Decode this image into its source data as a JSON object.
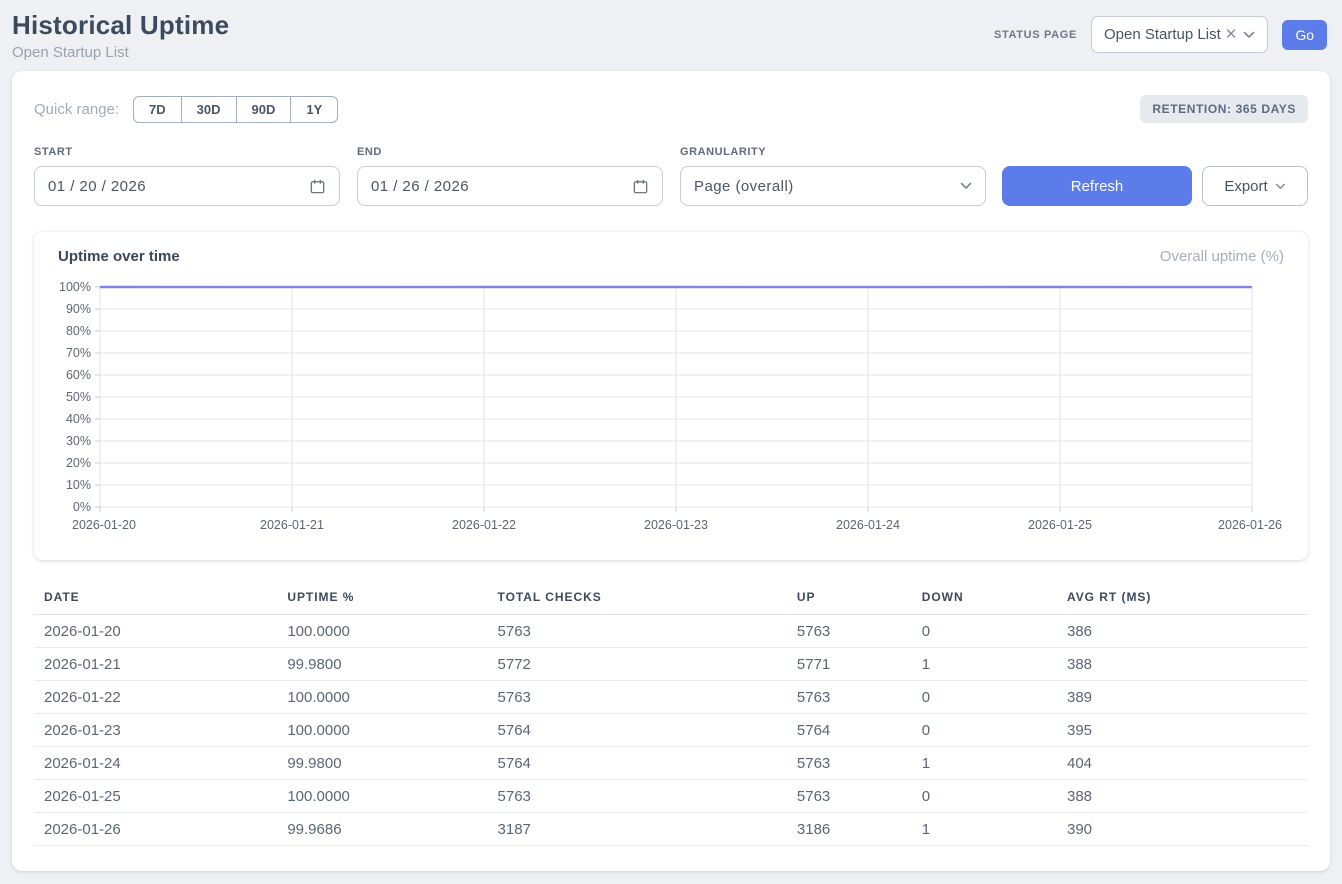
{
  "header": {
    "title": "Historical Uptime",
    "subtitle": "Open Startup List",
    "status_page_label": "STATUS PAGE",
    "status_page_value": "Open Startup List",
    "go_label": "Go"
  },
  "filters": {
    "quick_range_label": "Quick range:",
    "quick_ranges": [
      "7D",
      "30D",
      "90D",
      "1Y"
    ],
    "retention_badge": "RETENTION: 365 DAYS",
    "start_label": "START",
    "start_value": "01 / 20 / 2026",
    "end_label": "END",
    "end_value": "01 / 26 / 2026",
    "granularity_label": "GRANULARITY",
    "granularity_value": "Page (overall)",
    "refresh_label": "Refresh",
    "export_label": "Export"
  },
  "chart": {
    "title": "Uptime over time",
    "legend": "Overall uptime (%)"
  },
  "chart_data": {
    "type": "line",
    "title": "Uptime over time",
    "x": [
      "2026-01-20",
      "2026-01-21",
      "2026-01-22",
      "2026-01-23",
      "2026-01-24",
      "2026-01-25",
      "2026-01-26"
    ],
    "series": [
      {
        "name": "Overall uptime (%)",
        "values": [
          100.0,
          99.98,
          100.0,
          100.0,
          99.98,
          100.0,
          99.9686
        ]
      }
    ],
    "ylim": [
      0,
      100
    ],
    "y_ticks": [
      "0%",
      "10%",
      "20%",
      "30%",
      "40%",
      "50%",
      "60%",
      "70%",
      "80%",
      "90%",
      "100%"
    ],
    "grid": true,
    "legend_position": "top-right",
    "line_color": "#8186e3",
    "grid_color": "#e4e6ea",
    "tick_color": "#c9ced6",
    "axis_text_color": "#5f6670"
  },
  "table": {
    "columns": [
      "DATE",
      "UPTIME %",
      "TOTAL CHECKS",
      "UP",
      "DOWN",
      "AVG RT (MS)"
    ],
    "rows": [
      [
        "2026-01-20",
        "100.0000",
        "5763",
        "5763",
        "0",
        "386"
      ],
      [
        "2026-01-21",
        "99.9800",
        "5772",
        "5771",
        "1",
        "388"
      ],
      [
        "2026-01-22",
        "100.0000",
        "5763",
        "5763",
        "0",
        "389"
      ],
      [
        "2026-01-23",
        "100.0000",
        "5764",
        "5764",
        "0",
        "395"
      ],
      [
        "2026-01-24",
        "99.9800",
        "5764",
        "5763",
        "1",
        "404"
      ],
      [
        "2026-01-25",
        "100.0000",
        "5763",
        "5763",
        "0",
        "388"
      ],
      [
        "2026-01-26",
        "99.9686",
        "3187",
        "3186",
        "1",
        "390"
      ]
    ]
  },
  "colors": {
    "accent": "#5b7ce9",
    "line": "#8186e3",
    "page_bg": "#eef0f3"
  }
}
